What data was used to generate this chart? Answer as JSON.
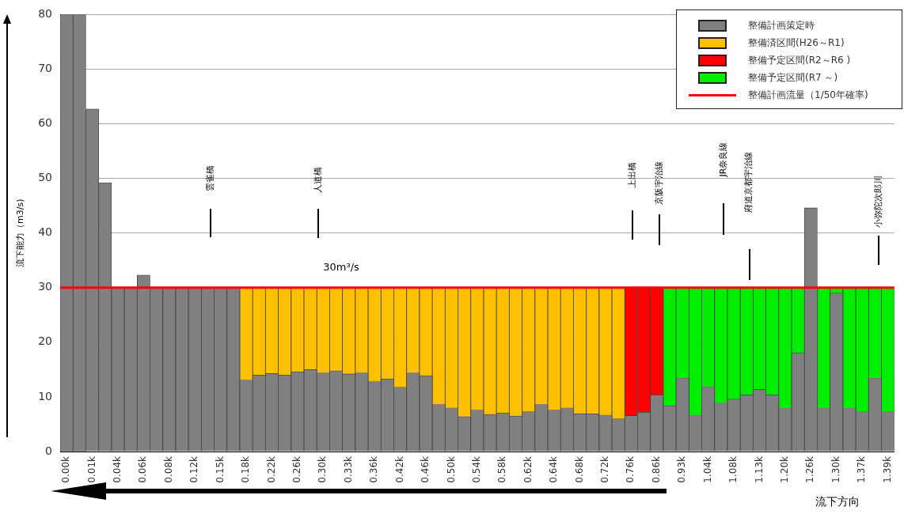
{
  "chart_data": {
    "type": "bar",
    "stacked": true,
    "ylabel": "流下能力（m3/s)",
    "xlabel": "流下方向",
    "categories": [
      "0.00k",
      null,
      "0.01k",
      null,
      "0.04k",
      null,
      "0.06k",
      null,
      "0.08k",
      null,
      "0.12k",
      null,
      "0.15k",
      null,
      "0.18k",
      null,
      "0.22k",
      null,
      "0.26k",
      null,
      "0.30k",
      null,
      "0.33k",
      null,
      "0.36k",
      null,
      "0.42k",
      null,
      "0.46k",
      null,
      "0.50k",
      null,
      "0.54k",
      null,
      "0.58k",
      null,
      "0.62k",
      null,
      "0.64k",
      null,
      "0.68k",
      null,
      "0.72k",
      null,
      "0.76k",
      null,
      "0.86k",
      null,
      "0.93k",
      null,
      "1.04k",
      null,
      "1.08k",
      null,
      "1.13k",
      null,
      "1.20k",
      null,
      "1.26k",
      null,
      "1.30k",
      null,
      "1.37k",
      null,
      "1.39k"
    ],
    "series": [
      {
        "name": "整備計画策定時",
        "color": "#808080",
        "values": [
          80,
          80,
          62.7,
          49.2,
          30,
          30,
          32.3,
          30,
          30,
          30,
          30,
          30,
          30,
          30,
          13.1,
          14.0,
          14.3,
          14.0,
          14.6,
          15.0,
          14.4,
          14.8,
          14.2,
          14.4,
          12.8,
          13.3,
          11.8,
          14.4,
          13.9,
          8.6,
          8.0,
          6.4,
          7.6,
          6.8,
          7.1,
          6.5,
          7.3,
          8.6,
          7.6,
          8.0,
          6.9,
          6.9,
          6.7,
          6.0,
          6.6,
          7.2,
          10.4,
          8.4,
          13.5,
          6.7,
          11.9,
          8.9,
          9.6,
          10.4,
          11.4,
          10.4,
          8.0,
          18.1,
          44.6,
          8.0,
          29.0,
          8.0,
          7.3,
          13.5,
          7.3
        ]
      },
      {
        "name": "整備済区間(H26～R1)",
        "color": "#ffc000",
        "values": [
          null,
          null,
          null,
          null,
          null,
          null,
          null,
          null,
          null,
          null,
          null,
          null,
          null,
          null,
          16.9,
          16.0,
          15.7,
          16.0,
          15.4,
          15.0,
          15.6,
          15.2,
          15.8,
          15.6,
          17.2,
          16.7,
          18.2,
          15.6,
          16.1,
          21.4,
          22.0,
          23.6,
          22.4,
          23.2,
          22.9,
          23.5,
          22.7,
          21.4,
          22.4,
          22.0,
          23.1,
          23.1,
          23.3,
          24.0,
          null,
          null,
          null,
          null,
          null,
          null,
          null,
          null,
          null,
          null,
          null,
          null,
          null,
          null,
          null,
          null,
          null,
          null,
          null,
          null,
          null
        ]
      },
      {
        "name": "整備予定区間(R2～R6 )",
        "color": "#ff0000",
        "values": [
          null,
          null,
          null,
          null,
          null,
          null,
          null,
          null,
          null,
          null,
          null,
          null,
          null,
          null,
          null,
          null,
          null,
          null,
          null,
          null,
          null,
          null,
          null,
          null,
          null,
          null,
          null,
          null,
          null,
          null,
          null,
          null,
          null,
          null,
          null,
          null,
          null,
          null,
          null,
          null,
          null,
          null,
          null,
          null,
          23.4,
          22.8,
          19.6,
          null,
          null,
          null,
          null,
          null,
          null,
          null,
          null,
          null,
          null,
          null,
          null,
          null,
          null,
          null,
          null,
          null,
          null
        ]
      },
      {
        "name": "整備予定区間(R7 ～)",
        "color": "#00ee00",
        "values": [
          null,
          null,
          null,
          null,
          null,
          null,
          null,
          null,
          null,
          null,
          null,
          null,
          null,
          null,
          null,
          null,
          null,
          null,
          null,
          null,
          null,
          null,
          null,
          null,
          null,
          null,
          null,
          null,
          null,
          null,
          null,
          null,
          null,
          null,
          null,
          null,
          null,
          null,
          null,
          null,
          null,
          null,
          null,
          null,
          null,
          null,
          null,
          21.6,
          16.5,
          23.3,
          18.1,
          21.1,
          20.4,
          19.6,
          18.6,
          19.6,
          22.0,
          11.9,
          null,
          22.0,
          1.0,
          22.0,
          22.7,
          16.5,
          22.7
        ]
      }
    ],
    "ref_lines": [
      {
        "axis": "y",
        "value": 30,
        "label": "整備計画流量（1/50年確率)",
        "color": "#ff0000"
      }
    ],
    "annotations": [
      "雲雀橋",
      "人道橋",
      "上出橋",
      "京阪宇治線",
      "JR奈良線",
      "府道京都宇治線",
      "小弥陀次郎川",
      "30m³/s"
    ],
    "ylim": [
      0,
      80
    ],
    "yticks": [
      0,
      10,
      20,
      30,
      40,
      50,
      60,
      70,
      80
    ],
    "grid": "y",
    "legend": "top right"
  }
}
